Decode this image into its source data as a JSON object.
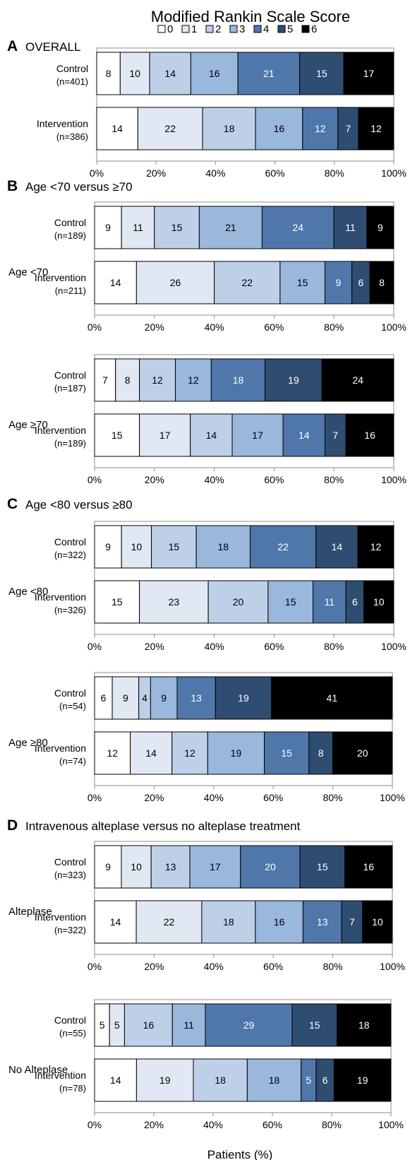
{
  "title": "Modified Rankin Scale Score",
  "legend": {
    "position": "top-center",
    "items": [
      "0",
      "1",
      "2",
      "3",
      "4",
      "5",
      "6"
    ]
  },
  "colors": {
    "mrs_fill": [
      "#ffffff",
      "#e1e8f3",
      "#bdd0e8",
      "#9ab7dc",
      "#4f77aa",
      "#2f4d70",
      "#000000"
    ],
    "mrs_label": [
      "#000000",
      "#000000",
      "#000000",
      "#000000",
      "#ffffff",
      "#ffffff",
      "#ffffff"
    ]
  },
  "xlabel": "Patients (%)",
  "xticks": [
    "0%",
    "20%",
    "40%",
    "60%",
    "80%",
    "100%"
  ],
  "sections": [
    {
      "letter": "A",
      "title": "OVERALL"
    },
    {
      "letter": "B",
      "title": "Age <70 versus ≥70"
    },
    {
      "letter": "C",
      "title": "Age <80 versus ≥80"
    },
    {
      "letter": "D",
      "title": "Intravenous alteplase versus no alteplase treatment"
    }
  ],
  "chart_data": [
    {
      "type": "bar",
      "orientation": "horizontal",
      "stacked": true,
      "xlim": [
        0,
        100
      ],
      "section": "A",
      "subgroup": "",
      "categories": [
        "0",
        "1",
        "2",
        "3",
        "4",
        "5",
        "6"
      ],
      "rows": [
        {
          "label": "Control",
          "n": "(n=401)",
          "values": [
            8,
            10,
            14,
            16,
            21,
            15,
            17
          ]
        },
        {
          "label": "Intervention",
          "n": "(n=386)",
          "values": [
            14,
            22,
            18,
            16,
            12,
            7,
            12
          ]
        }
      ]
    },
    {
      "type": "bar",
      "orientation": "horizontal",
      "stacked": true,
      "xlim": [
        0,
        100
      ],
      "section": "B",
      "subgroup": "Age <70",
      "categories": [
        "0",
        "1",
        "2",
        "3",
        "4",
        "5",
        "6"
      ],
      "rows": [
        {
          "label": "Control",
          "n": "(n=189)",
          "values": [
            9,
            11,
            15,
            21,
            24,
            11,
            9
          ]
        },
        {
          "label": "Intervention",
          "n": "(n=211)",
          "values": [
            14,
            26,
            22,
            15,
            9,
            6,
            8
          ]
        }
      ]
    },
    {
      "type": "bar",
      "orientation": "horizontal",
      "stacked": true,
      "xlim": [
        0,
        100
      ],
      "section": "B",
      "subgroup": "Age ≥70",
      "categories": [
        "0",
        "1",
        "2",
        "3",
        "4",
        "5",
        "6"
      ],
      "rows": [
        {
          "label": "Control",
          "n": "(n=187)",
          "values": [
            7,
            8,
            12,
            12,
            18,
            19,
            24
          ]
        },
        {
          "label": "Intervention",
          "n": "(n=189)",
          "values": [
            15,
            17,
            14,
            17,
            14,
            7,
            16
          ]
        }
      ]
    },
    {
      "type": "bar",
      "orientation": "horizontal",
      "stacked": true,
      "xlim": [
        0,
        100
      ],
      "section": "C",
      "subgroup": "Age <80",
      "categories": [
        "0",
        "1",
        "2",
        "3",
        "4",
        "5",
        "6"
      ],
      "rows": [
        {
          "label": "Control",
          "n": "(n=322)",
          "values": [
            9,
            10,
            15,
            18,
            22,
            14,
            12
          ]
        },
        {
          "label": "Intervention",
          "n": "(n=326)",
          "values": [
            15,
            23,
            20,
            15,
            11,
            6,
            10
          ]
        }
      ]
    },
    {
      "type": "bar",
      "orientation": "horizontal",
      "stacked": true,
      "xlim": [
        0,
        100
      ],
      "section": "C",
      "subgroup": "Age ≥80",
      "categories": [
        "0",
        "1",
        "2",
        "3",
        "4",
        "5",
        "6"
      ],
      "rows": [
        {
          "label": "Control",
          "n": "(n=54)",
          "values": [
            6,
            9,
            4,
            9,
            13,
            19,
            41
          ]
        },
        {
          "label": "Intervention",
          "n": "(n=74)",
          "values": [
            12,
            14,
            12,
            19,
            15,
            8,
            20
          ]
        }
      ]
    },
    {
      "type": "bar",
      "orientation": "horizontal",
      "stacked": true,
      "xlim": [
        0,
        100
      ],
      "section": "D",
      "subgroup": "Alteplase",
      "categories": [
        "0",
        "1",
        "2",
        "3",
        "4",
        "5",
        "6"
      ],
      "rows": [
        {
          "label": "Control",
          "n": "(n=323)",
          "values": [
            9,
            10,
            13,
            17,
            20,
            15,
            16
          ]
        },
        {
          "label": "Intervention",
          "n": "(n=322)",
          "values": [
            14,
            22,
            18,
            16,
            13,
            7,
            10
          ]
        }
      ]
    },
    {
      "type": "bar",
      "orientation": "horizontal",
      "stacked": true,
      "xlim": [
        0,
        100
      ],
      "section": "D",
      "subgroup": "No Alteplase",
      "categories": [
        "0",
        "1",
        "2",
        "3",
        "4",
        "5",
        "6"
      ],
      "rows": [
        {
          "label": "Control",
          "n": "(n=55)",
          "values": [
            5,
            5,
            16,
            11,
            29,
            15,
            18
          ]
        },
        {
          "label": "Intervention",
          "n": "(n=78)",
          "values": [
            14,
            19,
            18,
            18,
            5,
            6,
            19
          ]
        }
      ]
    }
  ]
}
